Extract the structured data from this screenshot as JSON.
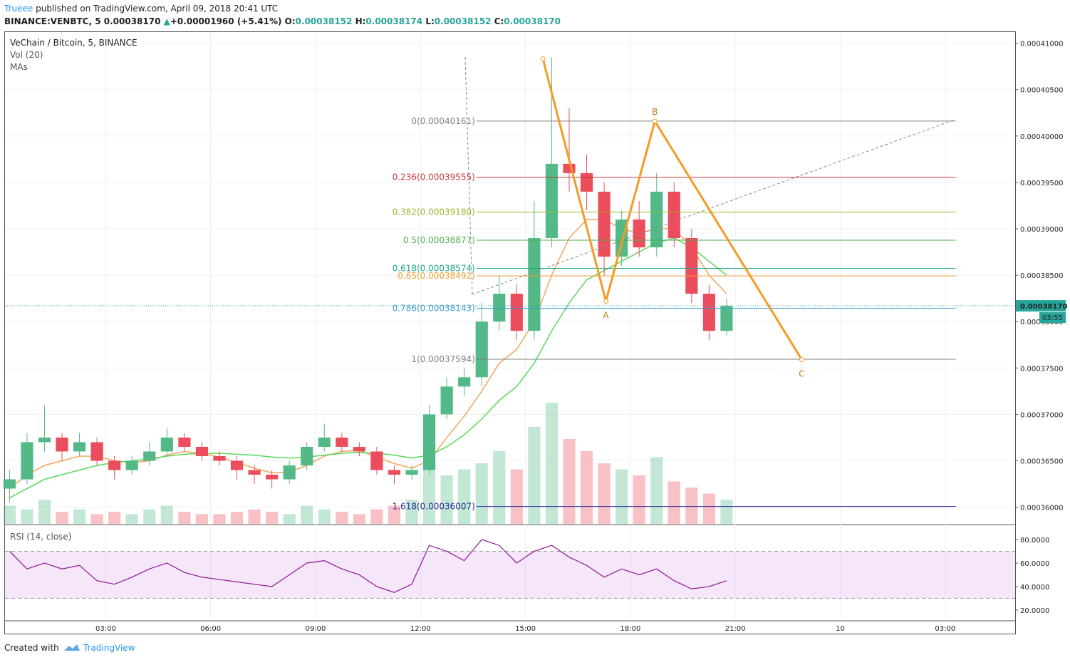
{
  "header": {
    "author": "Trueee",
    "published": "published on TradingView.com, April 09, 2018 20:41 UTC",
    "symbol": "BINANCE:VENBTC, 5",
    "last": "0.00038170",
    "arrow": "▲",
    "change": "+0.00001960 (+5.41%)",
    "o_label": "O:",
    "o": "0.00038152",
    "h_label": "H:",
    "h": "0.00038174",
    "l_label": "L:",
    "l": "0.00038152",
    "c_label": "C:",
    "c": "0.00038170"
  },
  "legend": {
    "title": "VeChain / Bitcoin, 5, BINANCE",
    "volume": "Vol (20)",
    "mas": "MAs"
  },
  "footer": {
    "created": "Created with",
    "brand": "TradingView"
  },
  "chart_data": {
    "type": "candlestick",
    "xlim": [
      0.12,
      29.0
    ],
    "xticks": [
      {
        "value": 3,
        "label": "03:00"
      },
      {
        "value": 6,
        "label": "06:00"
      },
      {
        "value": 9,
        "label": "09:00"
      },
      {
        "value": 12,
        "label": "12:00"
      },
      {
        "value": 15,
        "label": "15:00"
      },
      {
        "value": 18,
        "label": "18:00"
      },
      {
        "value": 21,
        "label": "21:00"
      },
      {
        "value": 24,
        "label": "10"
      },
      {
        "value": 27,
        "label": "03:00"
      }
    ],
    "ylim": [
      0.0003582,
      0.0004112
    ],
    "yticks": [
      {
        "value": 0.00036,
        "label": "0.00036000"
      },
      {
        "value": 0.000365,
        "label": "0.00036500"
      },
      {
        "value": 0.00037,
        "label": "0.00037000"
      },
      {
        "value": 0.000375,
        "label": "0.00037500"
      },
      {
        "value": 0.00038,
        "label": "0.00038000"
      },
      {
        "value": 0.000385,
        "label": "0.00038500"
      },
      {
        "value": 0.00039,
        "label": "0.00039000"
      },
      {
        "value": 0.000395,
        "label": "0.00039500"
      },
      {
        "value": 0.0004,
        "label": "0.00040000"
      },
      {
        "value": 0.000405,
        "label": "0.00040500"
      },
      {
        "value": 0.00041,
        "label": "0.00041000"
      }
    ],
    "grid": true,
    "up_color": "#53b987",
    "down_color": "#eb4d5c",
    "x": [
      0.25,
      0.75,
      1.25,
      1.75,
      2.25,
      2.75,
      3.25,
      3.75,
      4.25,
      4.75,
      5.25,
      5.75,
      6.25,
      6.75,
      7.25,
      7.75,
      8.25,
      8.75,
      9.25,
      9.75,
      10.25,
      10.75,
      11.25,
      11.75,
      12.25,
      12.75,
      13.25,
      13.75,
      14.25,
      14.75,
      15.25,
      15.75,
      16.25,
      16.75,
      17.25,
      17.75,
      18.25,
      18.75,
      19.25,
      19.75,
      20.25,
      20.75
    ],
    "open": [
      0.000362,
      0.000363,
      0.000367,
      0.0003675,
      0.000366,
      0.000367,
      0.000365,
      0.000364,
      0.000365,
      0.000366,
      0.0003675,
      0.0003665,
      0.0003655,
      0.000365,
      0.000364,
      0.0003635,
      0.000363,
      0.0003645,
      0.0003665,
      0.0003675,
      0.0003665,
      0.000366,
      0.000364,
      0.0003635,
      0.000364,
      0.00037,
      0.000373,
      0.000374,
      0.00038,
      0.000383,
      0.000379,
      0.000389,
      0.000397,
      0.000396,
      0.000394,
      0.000387,
      0.000391,
      0.000388,
      0.000394,
      0.000389,
      0.000383,
      0.000379
    ],
    "high": [
      0.000364,
      0.000368,
      0.000371,
      0.000368,
      0.000368,
      0.0003675,
      0.0003655,
      0.0003655,
      0.000367,
      0.0003685,
      0.000368,
      0.000367,
      0.000366,
      0.0003655,
      0.0003645,
      0.000364,
      0.000365,
      0.000367,
      0.000369,
      0.000368,
      0.000367,
      0.0003665,
      0.0003645,
      0.0003645,
      0.000371,
      0.000374,
      0.000375,
      0.000382,
      0.000385,
      0.000384,
      0.000393,
      0.0004085,
      0.000403,
      0.000398,
      0.000395,
      0.000392,
      0.000393,
      0.000396,
      0.000395,
      0.00039,
      0.000384,
      0.0003825
    ],
    "low": [
      0.0003605,
      0.0003625,
      0.000366,
      0.000365,
      0.0003655,
      0.0003645,
      0.000363,
      0.0003635,
      0.0003645,
      0.0003655,
      0.000366,
      0.000365,
      0.0003645,
      0.000363,
      0.0003625,
      0.000362,
      0.0003625,
      0.000364,
      0.000366,
      0.000366,
      0.0003655,
      0.0003635,
      0.0003625,
      0.000363,
      0.0003635,
      0.0003695,
      0.000372,
      0.000373,
      0.000379,
      0.000378,
      0.000378,
      0.000388,
      0.000394,
      0.000392,
      0.000385,
      0.000386,
      0.000387,
      0.000387,
      0.000388,
      0.000382,
      0.000378,
      0.0003785
    ],
    "close": [
      0.000363,
      0.000367,
      0.0003675,
      0.000366,
      0.000367,
      0.000365,
      0.000364,
      0.000365,
      0.000366,
      0.0003675,
      0.0003665,
      0.0003655,
      0.000365,
      0.000364,
      0.0003635,
      0.000363,
      0.0003645,
      0.0003665,
      0.0003675,
      0.0003665,
      0.000366,
      0.000364,
      0.0003635,
      0.000364,
      0.00037,
      0.000373,
      0.000374,
      0.00038,
      0.000383,
      0.000379,
      0.000389,
      0.000397,
      0.000396,
      0.000394,
      0.000387,
      0.000391,
      0.000388,
      0.000394,
      0.000389,
      0.000383,
      0.000379,
      0.0003817
    ],
    "volume": [
      15,
      12,
      20,
      10,
      12,
      8,
      10,
      8,
      12,
      15,
      10,
      8,
      8,
      10,
      12,
      10,
      8,
      15,
      12,
      10,
      8,
      12,
      15,
      20,
      55,
      40,
      45,
      50,
      60,
      45,
      80,
      100,
      70,
      60,
      50,
      45,
      40,
      55,
      35,
      30,
      25,
      20
    ],
    "moving_averages": [
      {
        "color": "#f7a35c",
        "values": [
          0.000362,
          0.0003635,
          0.0003645,
          0.000365,
          0.0003655,
          0.0003655,
          0.000365,
          0.0003648,
          0.000365,
          0.0003656,
          0.000366,
          0.0003658,
          0.0003654,
          0.0003648,
          0.0003642,
          0.0003637,
          0.0003638,
          0.0003645,
          0.0003655,
          0.000366,
          0.0003661,
          0.0003654,
          0.0003647,
          0.0003642,
          0.000365,
          0.0003675,
          0.0003698,
          0.0003725,
          0.0003755,
          0.000377,
          0.00038,
          0.000385,
          0.000389,
          0.000391,
          0.000391,
          0.00039,
          0.0003895,
          0.00039,
          0.00039,
          0.000388,
          0.000385,
          0.000383
        ]
      },
      {
        "color": "#59d959",
        "values": [
          0.000361,
          0.000362,
          0.000363,
          0.0003635,
          0.000364,
          0.0003645,
          0.0003648,
          0.000365,
          0.0003652,
          0.0003655,
          0.0003657,
          0.0003658,
          0.0003658,
          0.0003657,
          0.0003656,
          0.0003654,
          0.0003653,
          0.0003654,
          0.0003656,
          0.0003658,
          0.0003659,
          0.0003658,
          0.0003656,
          0.0003653,
          0.0003656,
          0.0003665,
          0.0003678,
          0.0003695,
          0.0003715,
          0.000373,
          0.0003755,
          0.000379,
          0.000382,
          0.0003845,
          0.0003855,
          0.0003865,
          0.0003875,
          0.0003885,
          0.000389,
          0.000388,
          0.0003865,
          0.000385
        ]
      }
    ],
    "last_price": {
      "value": 0.0003817,
      "label": "0.00038170"
    },
    "countdown": "03:55",
    "last_color": "#26a69a",
    "fib": {
      "xrange": [
        13.6,
        27.3
      ],
      "levels": [
        {
          "label": "0(0.00040161)",
          "value": 0.00040161,
          "color": "#808080"
        },
        {
          "label": "0.236(0.00039555)",
          "value": 0.00039555,
          "color": "#c8353a"
        },
        {
          "label": "0.382(0.00039180)",
          "value": 0.0003918,
          "color": "#98b82c"
        },
        {
          "label": "0.5(0.00038877)",
          "value": 0.00038877,
          "color": "#4caf50"
        },
        {
          "label": "0.618(0.00038574)",
          "value": 0.00038574,
          "color": "#1fa58e"
        },
        {
          "label": "0.65(0.00038492)",
          "value": 0.00038492,
          "color": "#f0a030"
        },
        {
          "label": "0.786(0.00038143)",
          "value": 0.00038143,
          "color": "#3d9bd6"
        },
        {
          "label": "1(0.00037594)",
          "value": 0.00037594,
          "color": "#808080"
        },
        {
          "label": "1.618(0.00036007)",
          "value": 0.00036007,
          "color": "#2c2c9c"
        }
      ]
    },
    "pattern": {
      "color": "#f59a23",
      "points": [
        {
          "x": 15.5,
          "y": 0.0004083
        },
        {
          "x": 17.3,
          "y": 0.0003822,
          "label": "A"
        },
        {
          "x": 18.7,
          "y": 0.0004016,
          "label": "B"
        },
        {
          "x": 22.9,
          "y": 0.0003759,
          "label": "C"
        }
      ]
    },
    "rsi": {
      "title": "RSI (14, close)",
      "color": "#8e1599",
      "ylim": [
        11.5,
        92.1
      ],
      "band": [
        30,
        70
      ],
      "yticks": [
        {
          "value": 20,
          "label": "20.0000"
        },
        {
          "value": 40,
          "label": "40.0000"
        },
        {
          "value": 60,
          "label": "60.0000"
        },
        {
          "value": 80,
          "label": "80.0000"
        }
      ],
      "values": [
        70,
        55,
        60,
        55,
        58,
        45,
        42,
        48,
        55,
        60,
        52,
        48,
        46,
        44,
        42,
        40,
        50,
        60,
        62,
        55,
        50,
        40,
        35,
        42,
        75,
        70,
        62,
        80,
        75,
        60,
        70,
        75,
        65,
        58,
        48,
        55,
        50,
        55,
        45,
        38,
        40,
        45
      ]
    }
  }
}
